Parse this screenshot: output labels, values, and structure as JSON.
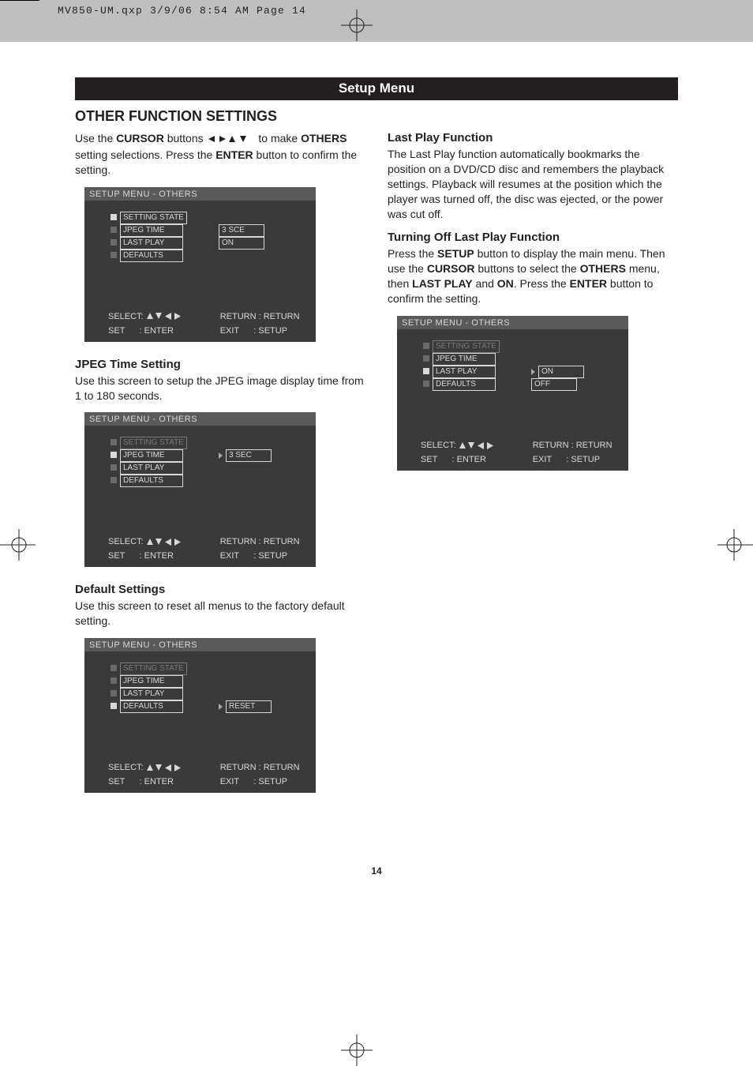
{
  "print_header": "MV850-UM.qxp  3/9/06  8:54 AM  Page 14",
  "title_bar": "Setup Menu",
  "section_heading": "OTHER FUNCTION SETTINGS",
  "intro": {
    "pre": "Use the ",
    "cursor": "CURSOR",
    "mid1": " buttons ",
    "mid2": " to make ",
    "others": "OTHERS",
    "mid3": " setting selections. Press the ",
    "enter": "ENTER",
    "post": " button to confirm the setting."
  },
  "osd_common": {
    "title": "SETUP MENU - OTHERS",
    "items": [
      "SETTING STATE",
      "JPEG TIME",
      "LAST PLAY",
      "DEFAULTS"
    ],
    "select_label": "SELECT:",
    "set_row": "SET      : ENTER",
    "return_row": "RETURN : RETURN",
    "exit_row": "EXIT      : SETUP"
  },
  "osd1": {
    "selected_index": 0,
    "values": [
      {
        "row": 1,
        "text": "3 SCE",
        "marker": false
      },
      {
        "row": 2,
        "text": "ON",
        "marker": false
      }
    ]
  },
  "jpeg": {
    "heading": "JPEG Time Setting",
    "text": "Use this screen to setup the JPEG image display time from 1 to 180 seconds."
  },
  "osd2": {
    "selected_index": 1,
    "values": [
      {
        "row": 1,
        "text": "3  SEC",
        "marker": true
      }
    ]
  },
  "defaults": {
    "heading": "Default Settings",
    "text": "Use this screen to reset all menus to the factory default setting."
  },
  "osd3": {
    "selected_index": 3,
    "values": [
      {
        "row": 3,
        "text": "RESET",
        "marker": true
      }
    ]
  },
  "lastplay": {
    "heading": "Last Play Function",
    "text": "The Last Play function automatically bookmarks the position on a DVD/CD disc and remembers the playback settings. Playback will resumes at the position which the player was turned off, the disc was ejected, or the power was cut off."
  },
  "turnoff": {
    "heading": "Turning Off Last Play Function",
    "pre": "Press the ",
    "setup": "SETUP",
    "t1": " button to display the main menu. Then use the ",
    "cursor": "CURSOR",
    "t2": " buttons to select the ",
    "others": "OTHERS",
    "t3": " menu, then ",
    "lastplay": "LAST PLAY",
    "t4": " and ",
    "on": "ON",
    "t5": ". Press the ",
    "enter": "ENTER",
    "t6": " button to confirm the setting."
  },
  "osd4": {
    "selected_index": 2,
    "values": [
      {
        "row": 2,
        "text": "ON",
        "marker": true
      },
      {
        "row": 3,
        "text": "OFF",
        "marker": false
      }
    ]
  },
  "page_number": "14",
  "colors": {
    "osd_bg": "#3a3a3a",
    "osd_titlebar": "#5a5a5a",
    "osd_text": "#d8d8d8",
    "osd_dim": "#7a7a7a",
    "body_text": "#231f20",
    "page_bg": "#ffffff",
    "header_bg": "#bfbfbf"
  }
}
